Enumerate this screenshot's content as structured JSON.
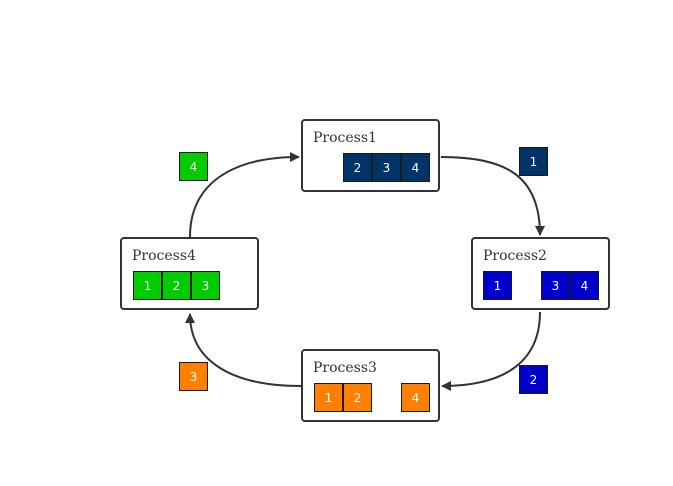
{
  "colors": {
    "p1": "#003366",
    "p2": "#0000cc",
    "p3": "#ff8000",
    "p4": "#00cc00",
    "edge": "#333333"
  },
  "processes": [
    {
      "name": "Process1",
      "cells": [
        "2",
        "3",
        "4"
      ]
    },
    {
      "name": "Process2",
      "cells": [
        "1",
        "3",
        "4"
      ]
    },
    {
      "name": "Process3",
      "cells": [
        "1",
        "2",
        "4"
      ]
    },
    {
      "name": "Process4",
      "cells": [
        "1",
        "2",
        "3"
      ]
    }
  ],
  "tokens": [
    {
      "label": "1",
      "from": "Process1",
      "to": "Process2"
    },
    {
      "label": "2",
      "from": "Process2",
      "to": "Process3"
    },
    {
      "label": "3",
      "from": "Process3",
      "to": "Process4"
    },
    {
      "label": "4",
      "from": "Process4",
      "to": "Process1"
    }
  ]
}
